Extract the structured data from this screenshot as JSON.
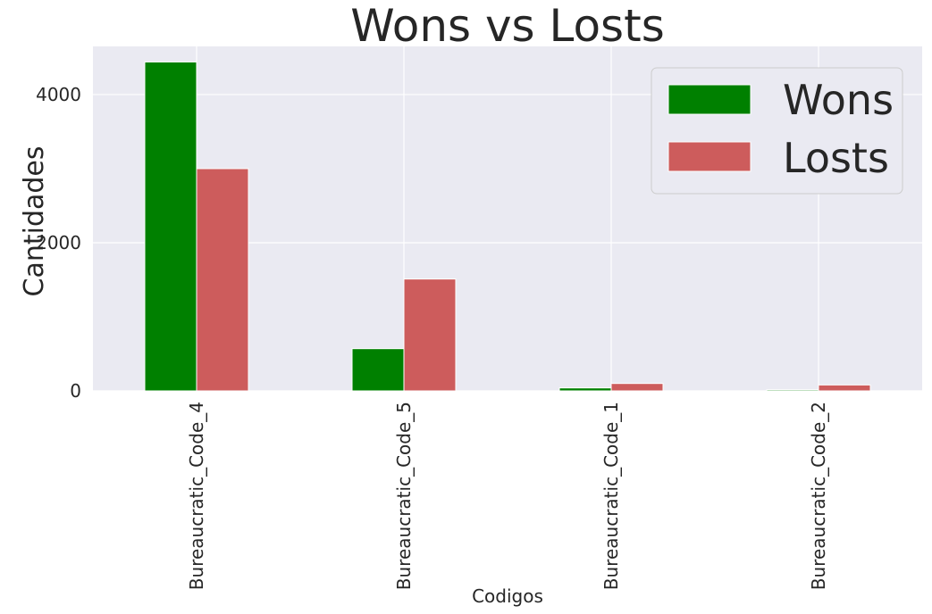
{
  "chart_data": {
    "type": "bar",
    "title": "Wons vs Losts",
    "xlabel": "Codigos",
    "ylabel": "Cantidades",
    "categories": [
      "Bureaucratic_Code_4",
      "Bureaucratic_Code_5",
      "Bureaucratic_Code_1",
      "Bureaucratic_Code_2"
    ],
    "series": [
      {
        "name": "Wons",
        "color": "#008000",
        "values": [
          4440,
          570,
          40,
          15
        ]
      },
      {
        "name": "Losts",
        "color": "#cd5c5c",
        "values": [
          3000,
          1510,
          100,
          80
        ]
      }
    ],
    "ylim": [
      0,
      4650
    ],
    "yticks": [
      0,
      2000,
      4000
    ],
    "grid": true,
    "legend_position": "top-right",
    "background": "#eaeaf2"
  }
}
